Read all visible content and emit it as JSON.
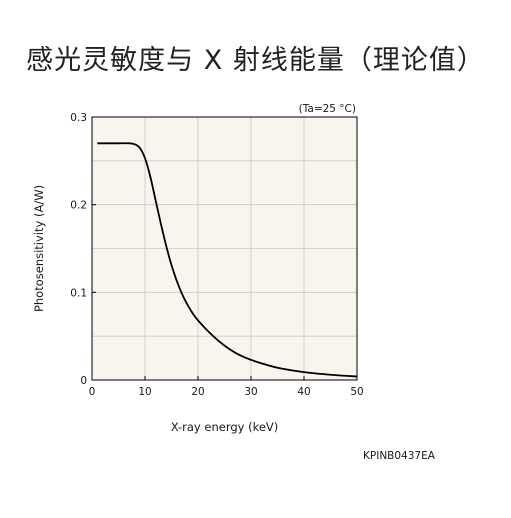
{
  "title": "感光灵敏度与 X 射线能量（理论值）",
  "figure_code": "KPINB0437EA",
  "chart_data": {
    "type": "line",
    "condition": "(Ta=25 °C)",
    "xlabel": "X-ray energy (keV)",
    "ylabel": "Photosensitivity (A/W)",
    "xlim": [
      0,
      50
    ],
    "ylim": [
      0,
      0.3
    ],
    "x_ticks": [
      0,
      10,
      20,
      30,
      40,
      50
    ],
    "y_ticks": [
      0,
      0.1,
      0.2,
      0.3
    ],
    "x_tick_labels": [
      "0",
      "10",
      "20",
      "30",
      "40",
      "50"
    ],
    "y_tick_labels": [
      "0",
      "0.1",
      "0.2",
      "0.3"
    ],
    "grid": true,
    "series": [
      {
        "color": "#000000",
        "x": [
          1,
          3,
          5,
          7,
          8,
          9,
          10,
          11,
          12,
          13,
          14,
          15,
          16,
          17,
          18,
          19,
          20,
          22,
          24,
          26,
          28,
          30,
          32,
          35,
          40,
          45,
          50
        ],
        "y": [
          0.27,
          0.27,
          0.27,
          0.27,
          0.269,
          0.265,
          0.253,
          0.232,
          0.205,
          0.178,
          0.153,
          0.131,
          0.113,
          0.098,
          0.086,
          0.076,
          0.068,
          0.055,
          0.044,
          0.035,
          0.028,
          0.023,
          0.019,
          0.014,
          0.009,
          0.006,
          0.004
        ]
      }
    ]
  },
  "colors": {
    "plot_background": "#f7f5ee",
    "grid": "#c8c8c8",
    "axis": "#000000",
    "curve": "#000000"
  }
}
